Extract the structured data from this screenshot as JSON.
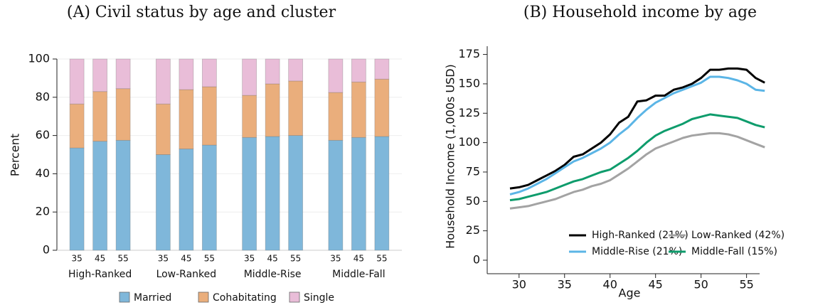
{
  "chart_data": [
    {
      "type": "stacked_bar",
      "title": "(A) Civil status by age and cluster",
      "ylabel": "Percent",
      "categories": [
        "35",
        "45",
        "55",
        "35",
        "45",
        "55",
        "35",
        "45",
        "55",
        "35",
        "45",
        "55"
      ],
      "groups": [
        "High-Ranked",
        "Low-Ranked",
        "Middle-Rise",
        "Middle-Fall"
      ],
      "series": [
        {
          "name": "Married",
          "color": "#7fb7da",
          "values": [
            53.5,
            57,
            57.5,
            50,
            53,
            55,
            59,
            59.5,
            60,
            57.5,
            59,
            59.5
          ]
        },
        {
          "name": "Cohabitating",
          "color": "#eaae7c",
          "values": [
            23,
            26,
            27,
            26.5,
            31,
            30.5,
            22,
            27.5,
            28.5,
            25,
            29,
            30
          ]
        },
        {
          "name": "Single",
          "color": "#e9bdd8",
          "values": [
            23.5,
            17,
            15.5,
            23.5,
            16,
            14.5,
            19,
            13,
            11.5,
            17.5,
            12,
            10.5
          ]
        }
      ],
      "ylim": [
        0,
        100
      ],
      "yticks": [
        0,
        20,
        40,
        60,
        80,
        100
      ],
      "grid": true,
      "legend": "bottom"
    },
    {
      "type": "line",
      "title": "(B) Household income by age",
      "xlabel": "Age",
      "ylabel": "Household Income (1,000s USD)",
      "x": [
        29,
        30,
        31,
        32,
        33,
        34,
        35,
        36,
        37,
        38,
        39,
        40,
        41,
        42,
        43,
        44,
        45,
        46,
        47,
        48,
        49,
        50,
        51,
        52,
        53,
        54,
        55,
        56,
        57
      ],
      "series": [
        {
          "name": "High-Ranked (21%)",
          "color": "#000000",
          "values": [
            61,
            62,
            64,
            68,
            72,
            76,
            81,
            88,
            90,
            95,
            100,
            107,
            117,
            122,
            135,
            136,
            140,
            140,
            145,
            147,
            150,
            155,
            162,
            162,
            163,
            163,
            162,
            155,
            151
          ]
        },
        {
          "name": "Low-Ranked (42%)",
          "color": "#a3a3a3",
          "values": [
            44,
            45,
            46,
            48,
            50,
            52,
            55,
            58,
            60,
            63,
            65,
            68,
            73,
            78,
            84,
            90,
            95,
            98,
            101,
            104,
            106,
            107,
            108,
            108,
            107,
            105,
            102,
            99,
            96
          ]
        },
        {
          "name": "Middle-Rise (21%)",
          "color": "#5bb5e6",
          "values": [
            56,
            58,
            61,
            65,
            69,
            74,
            79,
            84,
            87,
            91,
            95,
            100,
            107,
            113,
            121,
            128,
            134,
            138,
            142,
            145,
            148,
            151,
            156,
            156,
            155,
            153,
            150,
            145,
            144
          ]
        },
        {
          "name": "Middle-Fall (15%)",
          "color": "#0e9c6c",
          "values": [
            51,
            52,
            54,
            56,
            58,
            61,
            64,
            67,
            69,
            72,
            75,
            77,
            82,
            87,
            93,
            100,
            106,
            110,
            113,
            116,
            120,
            122,
            124,
            123,
            122,
            121,
            118,
            115,
            113
          ]
        }
      ],
      "xlim": [
        26.5,
        58
      ],
      "xticks": [
        30,
        35,
        40,
        45,
        50,
        55
      ],
      "ylim": [
        -11.5,
        182
      ],
      "yticks": [
        0,
        25,
        50,
        75,
        100,
        125,
        150,
        175
      ],
      "grid": false,
      "legend": "lower right"
    }
  ]
}
